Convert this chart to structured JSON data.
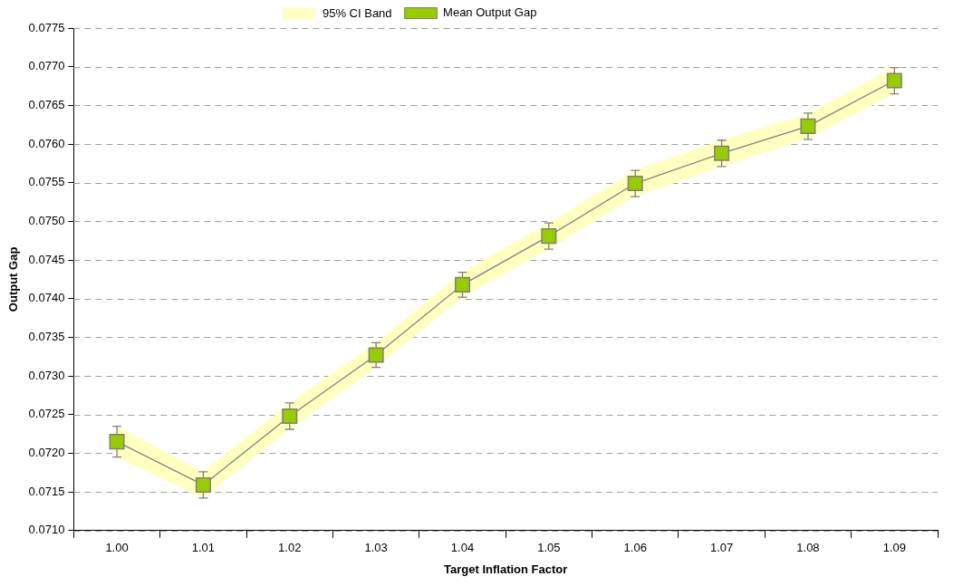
{
  "chart_data": {
    "type": "line",
    "xlabel": "Target Inflation Factor",
    "ylabel": "Output Gap",
    "annotations": [
      "95% CI Band"
    ],
    "categories": [
      "1.00",
      "1.01",
      "1.02",
      "1.03",
      "1.04",
      "1.05",
      "1.06",
      "1.07",
      "1.08",
      "1.09"
    ],
    "series": [
      {
        "name": "Mean Output Gap",
        "color": "#99cc00",
        "values": [
          0.07215,
          0.07159,
          0.07248,
          0.07327,
          0.07418,
          0.07481,
          0.07549,
          0.07588,
          0.07623,
          0.07682
        ],
        "errors": [
          0.0002,
          0.00017,
          0.00017,
          0.00016,
          0.00016,
          0.00017,
          0.00017,
          0.00017,
          0.00017,
          0.00017
        ],
        "lower": [
          0.07195,
          0.07142,
          0.07231,
          0.07311,
          0.07402,
          0.07464,
          0.07532,
          0.07571,
          0.07607,
          0.07665
        ],
        "upper": [
          0.07235,
          0.07176,
          0.07265,
          0.07343,
          0.07434,
          0.07498,
          0.07566,
          0.07605,
          0.07639,
          0.07699
        ]
      }
    ],
    "ylim": [
      0.071,
      0.0775
    ],
    "yticks": [
      {
        "value": 0.071,
        "label": "0.0710"
      },
      {
        "value": 0.0715,
        "label": "0.0715"
      },
      {
        "value": 0.072,
        "label": "0.0720"
      },
      {
        "value": 0.0725,
        "label": "0.0725"
      },
      {
        "value": 0.073,
        "label": "0.0730"
      },
      {
        "value": 0.0735,
        "label": "0.0735"
      },
      {
        "value": 0.074,
        "label": "0.0740"
      },
      {
        "value": 0.0745,
        "label": "0.0745"
      },
      {
        "value": 0.075,
        "label": "0.0750"
      },
      {
        "value": 0.0755,
        "label": "0.0755"
      },
      {
        "value": 0.076,
        "label": "0.0760"
      },
      {
        "value": 0.0765,
        "label": "0.0765"
      },
      {
        "value": 0.077,
        "label": "0.0770"
      },
      {
        "value": 0.0775,
        "label": "0.0775"
      }
    ],
    "grid": "y",
    "legend": "top",
    "marker": "square",
    "line_style": "solid"
  }
}
